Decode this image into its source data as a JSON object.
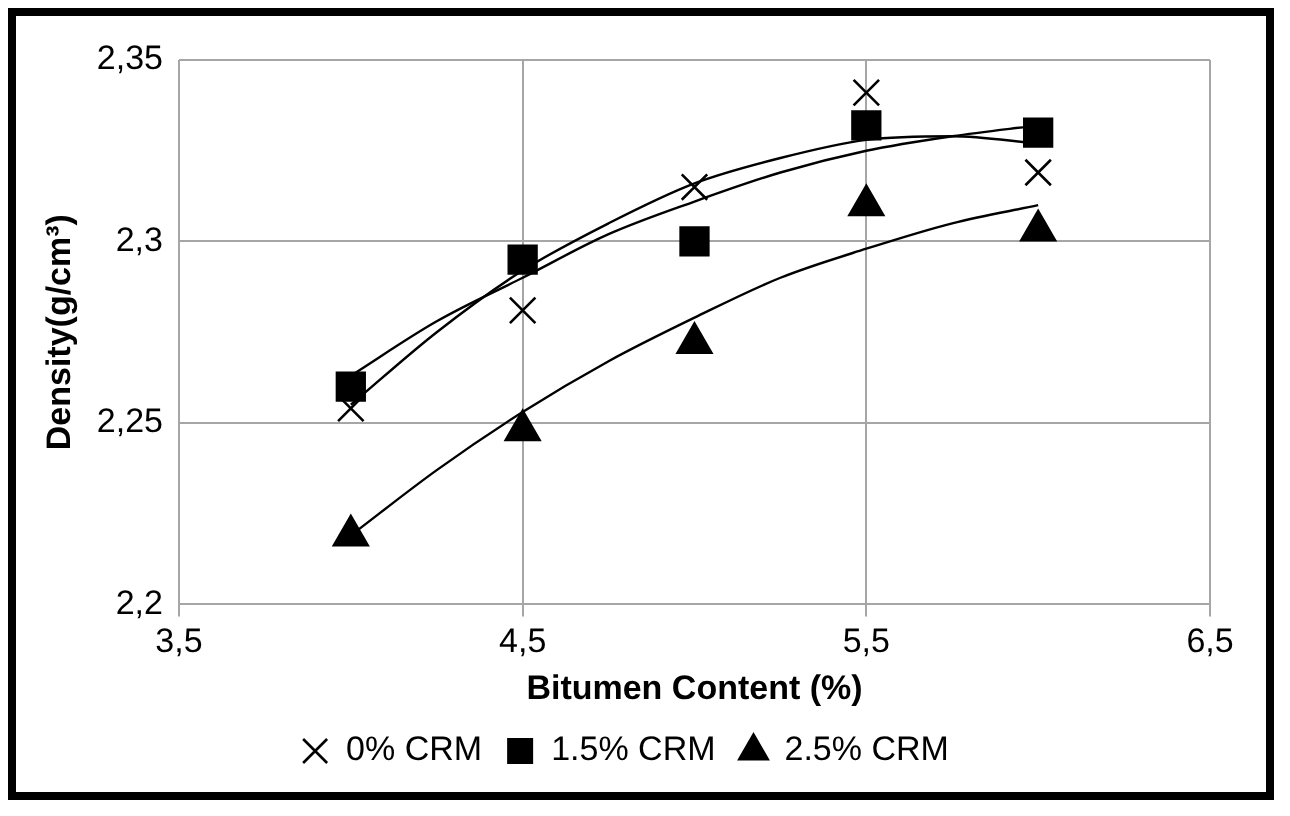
{
  "chart_data": {
    "type": "scatter",
    "xlabel": "Bitumen Content (%)",
    "ylabel": "Density(g/cm³)",
    "xlim": [
      3.5,
      6.5
    ],
    "xticks": [
      {
        "value": 3.5,
        "label": "3,5"
      },
      {
        "value": 4.5,
        "label": "4,5"
      },
      {
        "value": 5.5,
        "label": "5,5"
      },
      {
        "value": 6.5,
        "label": "6,5"
      }
    ],
    "ylim": [
      2.2,
      2.35
    ],
    "yticks": [
      {
        "value": 2.2,
        "label": "2,2"
      },
      {
        "value": 2.25,
        "label": "2,25"
      },
      {
        "value": 2.3,
        "label": "2,3"
      },
      {
        "value": 2.35,
        "label": "2,35"
      }
    ],
    "grid": true,
    "legend": "bottom",
    "series": [
      {
        "name": "0% CRM",
        "type": "scatter",
        "marker": "cross",
        "color": "#000000",
        "x": [
          4,
          4.5,
          5,
          5.5,
          6
        ],
        "values": [
          2.254,
          2.281,
          2.315,
          2.341,
          2.319
        ]
      },
      {
        "name": "1.5% CRM",
        "type": "scatter",
        "marker": "square",
        "color": "#000000",
        "x": [
          4,
          4.5,
          5,
          5.5,
          6
        ],
        "values": [
          2.26,
          2.295,
          2.3,
          2.332,
          2.33
        ]
      },
      {
        "name": "2.5% CRM",
        "type": "scatter",
        "marker": "triangle",
        "color": "#000000",
        "x": [
          4,
          4.5,
          5,
          5.5,
          6
        ],
        "values": [
          2.219,
          2.248,
          2.272,
          2.31,
          2.303
        ]
      },
      {
        "type": "line",
        "marker": "none",
        "color": "#000000",
        "x": [
          4,
          4.25,
          4.5,
          4.75,
          5,
          5.25,
          5.5,
          5.75,
          6
        ],
        "values": [
          2.255,
          2.275,
          2.292,
          2.305,
          2.316,
          2.323,
          2.328,
          2.329,
          2.327
        ]
      },
      {
        "type": "line",
        "marker": "none",
        "color": "#000000",
        "x": [
          4,
          4.25,
          4.5,
          4.75,
          5,
          5.25,
          5.5,
          5.75,
          6
        ],
        "values": [
          2.263,
          2.278,
          2.29,
          2.302,
          2.311,
          2.319,
          2.325,
          2.329,
          2.332
        ]
      },
      {
        "type": "line",
        "marker": "none",
        "color": "#000000",
        "x": [
          4,
          4.25,
          4.5,
          4.75,
          5,
          5.25,
          5.5,
          5.75,
          6
        ],
        "values": [
          2.219,
          2.237,
          2.253,
          2.267,
          2.279,
          2.29,
          2.298,
          2.305,
          2.31
        ]
      }
    ]
  }
}
